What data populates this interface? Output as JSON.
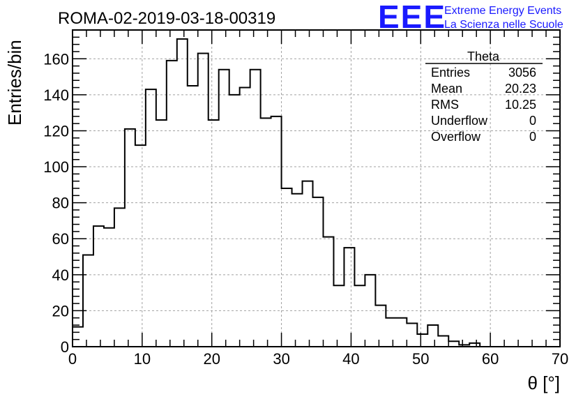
{
  "chart_data": {
    "type": "histogram",
    "title": "ROMA-02-2019-03-18-00319",
    "xlabel": "θ [°]",
    "ylabel": "Entries/bin",
    "xlim": [
      0,
      70
    ],
    "ylim": [
      0,
      176
    ],
    "bin_width": 1.5,
    "bin_start": 0,
    "grid": true,
    "x_ticks": [
      0,
      10,
      20,
      30,
      40,
      50,
      60,
      70
    ],
    "y_ticks": [
      0,
      20,
      40,
      60,
      80,
      100,
      120,
      140,
      160
    ],
    "series": [
      {
        "name": "Theta",
        "color": "#000000",
        "values": [
          11,
          51,
          67,
          66,
          77,
          121,
          112,
          143,
          126,
          159,
          171,
          145,
          163,
          126,
          154,
          140,
          144,
          154,
          127,
          128,
          88,
          85,
          92,
          83,
          61,
          34,
          55,
          34,
          40,
          23,
          16,
          16,
          13,
          7,
          12,
          6,
          3,
          1,
          2
        ]
      }
    ],
    "stats_box": {
      "title": "Theta",
      "rows": [
        {
          "label": "Entries",
          "value": "3056"
        },
        {
          "label": "Mean",
          "value": "20.23"
        },
        {
          "label": "RMS",
          "value": "10.25"
        },
        {
          "label": "Underflow",
          "value": "0"
        },
        {
          "label": "Overflow",
          "value": "0"
        }
      ]
    }
  },
  "logo": {
    "mark": "EEE",
    "line1": "Extreme Energy Events",
    "line2": "La Scienza nelle Scuole",
    "color": "#1a1aff"
  }
}
